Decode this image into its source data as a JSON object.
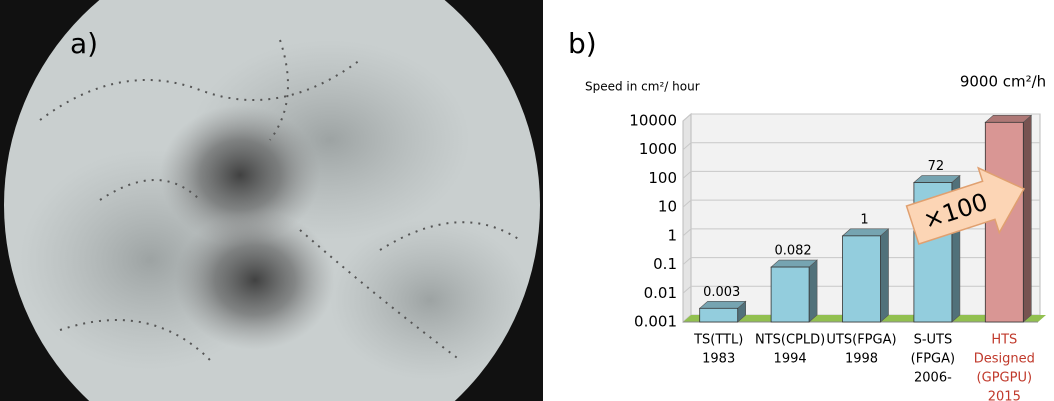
{
  "panel_labels": [
    "a)",
    "b)"
  ],
  "chart_data": {
    "type": "bar",
    "y_label": "Speed in cm²/ hour",
    "annotation": "×100",
    "categories": [
      [
        "TS(TTL)",
        "1983"
      ],
      [
        "NTS(CPLD)",
        "1994"
      ],
      [
        "UTS(FPGA)",
        "1998"
      ],
      [
        "S-UTS",
        "(FPGA)",
        "2006-"
      ],
      [
        "HTS",
        "Designed",
        "(GPGPU)",
        "2015"
      ]
    ],
    "category_colors": [
      "#000000",
      "#000000",
      "#000000",
      "#000000",
      "#c0392b"
    ],
    "values": [
      0.003,
      0.082,
      1,
      72,
      9000
    ],
    "value_labels": [
      "0.003",
      "0.082",
      "1",
      "72",
      "9000 cm²/h"
    ],
    "colors": [
      "#93cddd",
      "#93cddd",
      "#93cddd",
      "#93cddd",
      "#d99694"
    ],
    "ylim": [
      0.001,
      10000
    ],
    "yticks": [
      0.001,
      0.01,
      0.1,
      1,
      10,
      100,
      1000,
      10000
    ],
    "log": true,
    "grid": true
  }
}
